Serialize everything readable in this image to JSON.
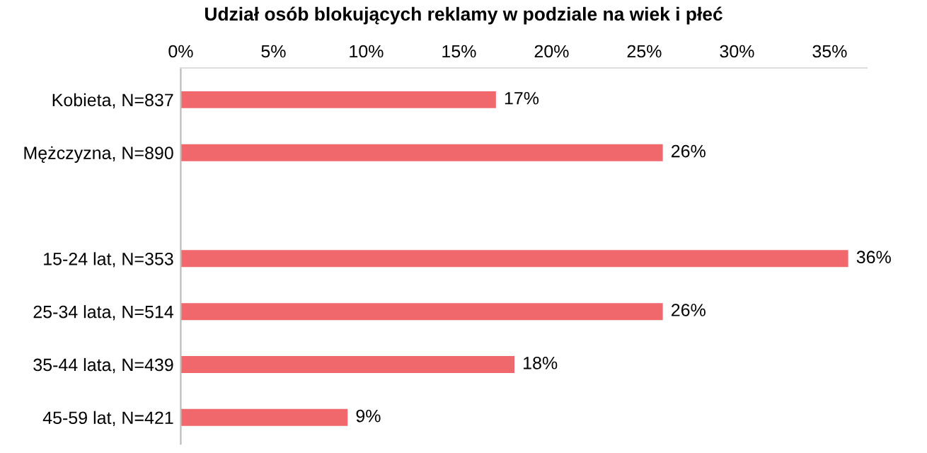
{
  "chart_data": {
    "type": "bar",
    "orientation": "horizontal",
    "title": "Udział osób blokujących reklamy w podziale na wiek i płeć",
    "categories": [
      "Kobieta, N=837",
      "Mężczyzna, N=890",
      null,
      "15-24 lat, N=353",
      "25-34 lata, N=514",
      "35-44 lata, N=439",
      "45-59 lat, N=421"
    ],
    "values": [
      17,
      26,
      null,
      36,
      26,
      18,
      9
    ],
    "value_labels": [
      "17%",
      "26%",
      null,
      "36%",
      "26%",
      "18%",
      "9%"
    ],
    "color": "#f0686b",
    "xlim": [
      0,
      37
    ],
    "xticks": [
      {
        "value": 0,
        "label": "0%"
      },
      {
        "value": 5,
        "label": "5%"
      },
      {
        "value": 10,
        "label": "10%"
      },
      {
        "value": 15,
        "label": "15%"
      },
      {
        "value": 20,
        "label": "20%"
      },
      {
        "value": 25,
        "label": "25%"
      },
      {
        "value": 30,
        "label": "30%"
      },
      {
        "value": 35,
        "label": "35%"
      }
    ],
    "grid": false,
    "legend": false
  }
}
